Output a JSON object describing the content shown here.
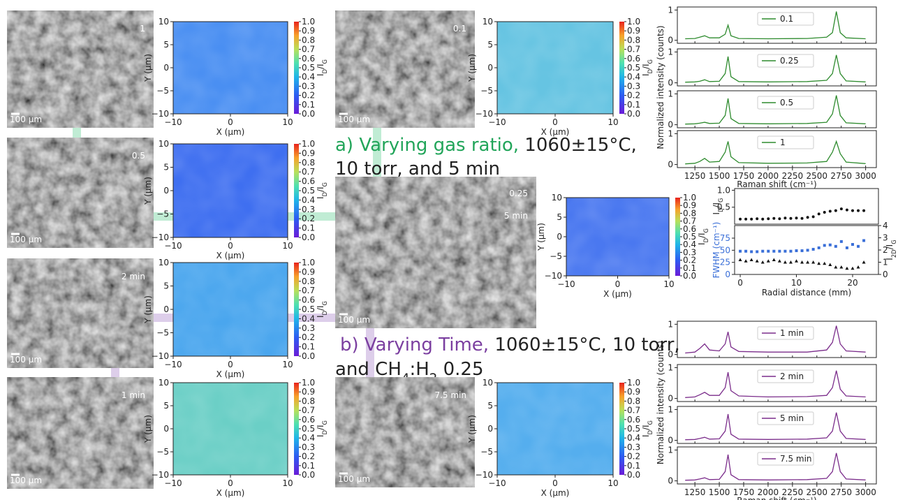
{
  "sem_images": [
    {
      "label": "1",
      "scale": "100 µm"
    },
    {
      "label": "0.5",
      "scale": "100 µm"
    },
    {
      "label": "2 min",
      "scale": "100 µm"
    },
    {
      "label": "1 min",
      "scale": "100 µm"
    },
    {
      "label": "0.1",
      "scale": "100 µm"
    },
    {
      "label": "0.25",
      "sublabel": "5 min",
      "scale": "100 µm"
    },
    {
      "label": "7.5 min",
      "scale": "100 µm"
    }
  ],
  "maps": {
    "xlim": [
      -10,
      10
    ],
    "ylim": [
      -10,
      10
    ],
    "xticks": [
      {
        "value": -10,
        "label": "−10"
      },
      0,
      10
    ],
    "yticks": [
      {
        "value": -10,
        "label": "−10"
      },
      {
        "value": -5,
        "label": "−5"
      },
      0,
      5,
      10
    ],
    "xlabel": "X (μm)",
    "ylabel": "Y (μm)",
    "clim": [
      0,
      1
    ],
    "cticks": [
      {
        "value": 0,
        "label": "0.0"
      },
      0.1,
      0.2,
      0.3,
      0.4,
      0.5,
      0.6,
      0.7,
      0.8,
      0.9,
      {
        "value": 1,
        "label": "1.0"
      }
    ],
    "clabel_parts": [
      "I",
      "D",
      "/I",
      "G"
    ],
    "colors": [
      "#4a8ff2",
      "#3f6ff0",
      "#4aa6ee",
      "#6bcfc6",
      "#66c4e2",
      "#4a78f0",
      "#55aeee"
    ]
  },
  "annotation_a": {
    "color": "#22a55a",
    "lead": "a) Varying gas ratio,",
    "line1": " 1060±15°C,",
    "line2": "10 torr, and 5 min"
  },
  "annotation_b": {
    "color": "#7b3fa0",
    "lead": "b) Varying Time,",
    "line1": " 1060±15°C, 10 torr,",
    "line2_parts": [
      "and CH",
      "4",
      ":H",
      "2",
      " 0.25"
    ]
  },
  "spectra": [
    {
      "color": "#2e8b2e",
      "x": [
        1150,
        1250,
        1300,
        1350,
        1400,
        1500,
        1560,
        1590,
        1620,
        1700,
        2000,
        2400,
        2600,
        2660,
        2700,
        2740,
        2800,
        3000
      ],
      "xlim": [
        1070,
        3110
      ],
      "ylim": [
        -0.1,
        1.1
      ],
      "xticks": [
        1250,
        1500,
        1750,
        2000,
        2250,
        2500,
        2750,
        3000
      ],
      "yticks": [
        0,
        1
      ],
      "xlabel": "Raman shift (cm⁻¹)",
      "ylabel": "Normalized intensity (counts)",
      "panels": [
        {
          "name": "0.1",
          "values": [
            0.05,
            0.06,
            0.1,
            0.15,
            0.08,
            0.08,
            0.2,
            0.5,
            0.15,
            0.06,
            0.05,
            0.06,
            0.1,
            0.25,
            0.95,
            0.25,
            0.08,
            0.05
          ]
        },
        {
          "name": "0.25",
          "values": [
            0.02,
            0.03,
            0.05,
            0.1,
            0.04,
            0.05,
            0.3,
            0.85,
            0.2,
            0.04,
            0.03,
            0.04,
            0.08,
            0.3,
            0.9,
            0.3,
            0.06,
            0.03
          ]
        },
        {
          "name": "0.5",
          "values": [
            0.02,
            0.03,
            0.05,
            0.08,
            0.04,
            0.05,
            0.3,
            0.85,
            0.2,
            0.04,
            0.03,
            0.04,
            0.08,
            0.35,
            0.95,
            0.3,
            0.06,
            0.03
          ]
        },
        {
          "name": "1",
          "values": [
            0.02,
            0.04,
            0.1,
            0.2,
            0.08,
            0.1,
            0.4,
            0.75,
            0.25,
            0.06,
            0.04,
            0.05,
            0.1,
            0.4,
            0.75,
            0.35,
            0.08,
            0.03
          ]
        }
      ]
    },
    {
      "color": "#7b2d8b",
      "x": [
        1150,
        1250,
        1300,
        1350,
        1400,
        1500,
        1560,
        1590,
        1620,
        1700,
        2000,
        2400,
        2600,
        2660,
        2700,
        2740,
        2800,
        3000
      ],
      "xlim": [
        1070,
        3110
      ],
      "ylim": [
        -0.1,
        1.1
      ],
      "xticks": [
        1250,
        1500,
        1750,
        2000,
        2250,
        2500,
        2750,
        3000
      ],
      "yticks": [
        0,
        1
      ],
      "xlabel": "Raman shift (cm⁻¹)",
      "ylabel": "Normalized intensity (counts)",
      "panels": [
        {
          "name": "1 min",
          "values": [
            0.05,
            0.08,
            0.2,
            0.35,
            0.15,
            0.12,
            0.35,
            0.75,
            0.25,
            0.1,
            0.08,
            0.08,
            0.15,
            0.4,
            0.95,
            0.35,
            0.12,
            0.08
          ]
        },
        {
          "name": "2 min",
          "values": [
            0.03,
            0.05,
            0.12,
            0.2,
            0.1,
            0.1,
            0.35,
            0.85,
            0.25,
            0.08,
            0.05,
            0.06,
            0.1,
            0.35,
            0.9,
            0.3,
            0.08,
            0.05
          ]
        },
        {
          "name": "5 min",
          "values": [
            0.02,
            0.03,
            0.06,
            0.1,
            0.04,
            0.05,
            0.3,
            0.85,
            0.2,
            0.04,
            0.03,
            0.04,
            0.08,
            0.3,
            0.9,
            0.3,
            0.06,
            0.03
          ]
        },
        {
          "name": "7.5 min",
          "values": [
            0.02,
            0.03,
            0.06,
            0.1,
            0.04,
            0.05,
            0.3,
            0.85,
            0.2,
            0.04,
            0.03,
            0.04,
            0.08,
            0.3,
            0.9,
            0.3,
            0.06,
            0.03
          ]
        }
      ]
    }
  ],
  "radial": {
    "x": [
      0,
      1,
      2,
      3,
      4,
      5,
      6,
      7,
      8,
      9,
      10,
      11,
      12,
      13,
      14,
      15,
      16,
      17,
      18,
      19,
      20,
      21,
      22
    ],
    "xlim": [
      -1,
      24.6
    ],
    "xticks": [
      0,
      10,
      20
    ],
    "xlabel": "Radial distance (mm)",
    "top": {
      "ylim": [
        0,
        1.05
      ],
      "yticks": [
        0.5,
        {
          "value": 1,
          "label": "1.0"
        }
      ],
      "ylabel_parts": [
        "I",
        "D",
        "/I",
        "G"
      ],
      "color": "#111111",
      "values": [
        0.15,
        0.15,
        0.15,
        0.16,
        0.15,
        0.16,
        0.17,
        0.16,
        0.18,
        0.17,
        0.18,
        0.17,
        0.2,
        0.22,
        0.3,
        0.35,
        0.38,
        0.4,
        0.45,
        0.42,
        0.4,
        0.4,
        0.4
      ]
    },
    "bottom": {
      "ylim": [
        0,
        101
      ],
      "yticks": [
        0,
        25,
        50,
        75
      ],
      "ylabel": "FWHM (cm⁻¹)",
      "color": "#3a6fd8",
      "values": [
        48,
        48,
        47,
        47,
        48,
        48,
        48,
        48,
        48,
        48,
        49,
        49,
        50,
        52,
        55,
        60,
        61,
        58,
        68,
        55,
        62,
        58,
        70
      ],
      "y2lim": [
        0,
        4
      ],
      "y2ticks": [
        0,
        1,
        2,
        3,
        4
      ],
      "y2label_parts": [
        "I",
        "2D",
        "/I",
        "G"
      ],
      "color2": "#111111",
      "values2": [
        1.2,
        1.1,
        1.2,
        1.1,
        1.0,
        1.1,
        1.2,
        1.1,
        1.0,
        1.0,
        1.1,
        1.0,
        1.0,
        1.0,
        0.9,
        0.9,
        0.8,
        0.6,
        0.6,
        0.5,
        0.5,
        0.6,
        1.0
      ]
    }
  }
}
